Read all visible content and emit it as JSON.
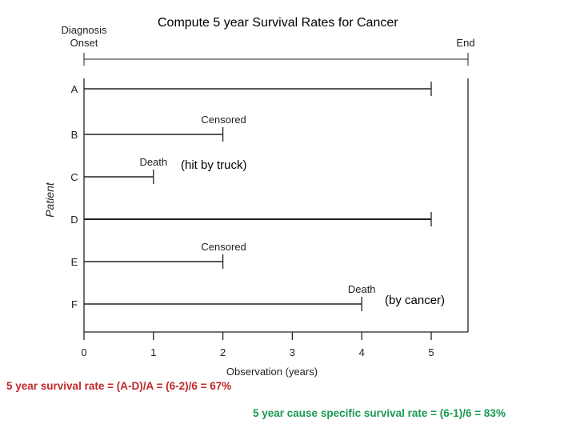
{
  "title": "Compute 5 year Survival Rates for Cancer",
  "diagram": {
    "start_label_line1": "Diagnosis",
    "start_label_line2": "Onset",
    "end_label": "End",
    "y_axis_label": "Patient",
    "x_axis_label": "Observation (years)",
    "x_ticks": [
      "0",
      "1",
      "2",
      "3",
      "4",
      "5"
    ],
    "x_range": [
      0,
      5.5
    ],
    "patients": [
      {
        "id": "A",
        "end": 5,
        "label": ""
      },
      {
        "id": "B",
        "end": 2,
        "label": "Censored"
      },
      {
        "id": "C",
        "end": 1,
        "label": "Death"
      },
      {
        "id": "D",
        "end": 5,
        "label": ""
      },
      {
        "id": "E",
        "end": 2,
        "label": "Censored"
      },
      {
        "id": "F",
        "end": 4,
        "label": "Death"
      }
    ]
  },
  "annotations": {
    "truck": "(hit by truck)",
    "cancer": "(by cancer)"
  },
  "formulas": {
    "survival": "5 year survival rate =  (A-D)/A = (6-2)/6 = 67%",
    "cause_specific": "5 year cause specific survival rate = (6-1)/6 = 83%"
  },
  "colors": {
    "survival": "#c0282a",
    "cause_specific": "#1a9950"
  }
}
